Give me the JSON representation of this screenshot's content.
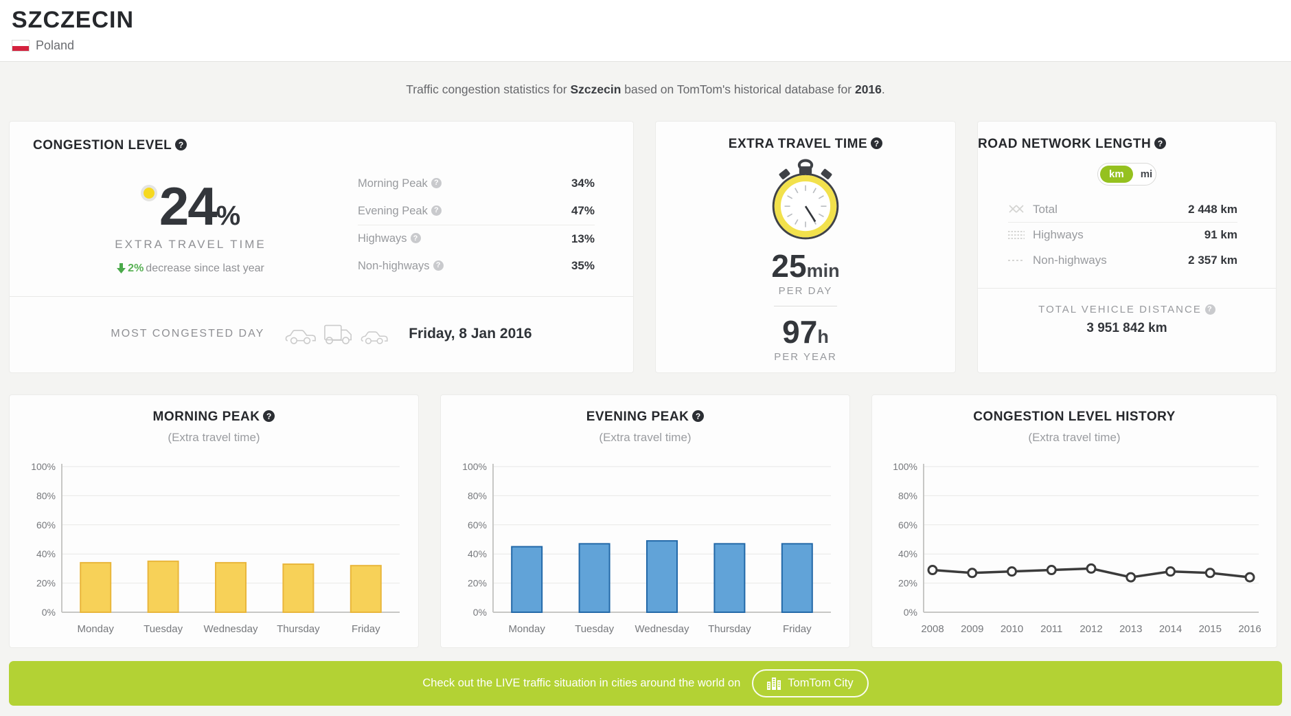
{
  "header": {
    "city": "SZCZECIN",
    "country": "Poland"
  },
  "subtitle": {
    "prefix": "Traffic congestion statistics for ",
    "city": "Szczecin",
    "middle": " based on TomTom's historical database for ",
    "year": "2016",
    "suffix": "."
  },
  "icons": {
    "help_glyph": "?"
  },
  "congestion_card": {
    "title": "CONGESTION LEVEL",
    "main_value": "24",
    "percent_sign": "%",
    "main_label": "EXTRA TRAVEL TIME",
    "trend_value": "2%",
    "trend_text": "decrease since last year",
    "stats": [
      {
        "label": "Morning Peak",
        "value": "34%"
      },
      {
        "label": "Evening Peak",
        "value": "47%"
      },
      {
        "label": "Highways",
        "value": "13%"
      },
      {
        "label": "Non-highways",
        "value": "35%"
      }
    ],
    "most_congested_label": "MOST CONGESTED DAY",
    "most_congested_day": "Friday, 8 Jan 2016"
  },
  "extra_time_card": {
    "title": "EXTRA TRAVEL TIME",
    "per_day_value": "25",
    "per_day_unit": "min",
    "per_day_label": "PER DAY",
    "per_year_value": "97",
    "per_year_unit": "h",
    "per_year_label": "PER YEAR"
  },
  "road_card": {
    "title": "ROAD NETWORK LENGTH",
    "unit_km": "km",
    "unit_mi": "mi",
    "rows": [
      {
        "label": "Total",
        "value": "2 448 km"
      },
      {
        "label": "Highways",
        "value": "91 km"
      },
      {
        "label": "Non-highways",
        "value": "2 357 km"
      }
    ],
    "distance_label": "TOTAL VEHICLE DISTANCE",
    "distance_value": "3 951 842 km"
  },
  "banner": {
    "text": "Check out the LIVE traffic situation in cities around the world on",
    "button": "TomTom City"
  },
  "colors": {
    "accent_green": "#95c11f",
    "banner_green": "#b3d234",
    "trend_green": "#58b154",
    "dot_yellow": "#f6d91f",
    "bar_yellow": "#f7d158",
    "bar_yellow_border": "#e9b63b",
    "bar_blue": "#61a3d8",
    "bar_blue_border": "#2268a8",
    "line_dark": "#3b3b3b"
  },
  "chart_data": [
    {
      "type": "bar",
      "title": "MORNING PEAK",
      "subtitle": "(Extra travel time)",
      "categories": [
        "Monday",
        "Tuesday",
        "Wednesday",
        "Thursday",
        "Friday"
      ],
      "values": [
        34,
        35,
        34,
        33,
        32
      ],
      "ylim": [
        0,
        100
      ],
      "yticks": [
        "0%",
        "20%",
        "40%",
        "60%",
        "80%",
        "100%"
      ],
      "grid": true,
      "bar_fill": "#f7d158",
      "bar_stroke": "#e9b63b"
    },
    {
      "type": "bar",
      "title": "EVENING PEAK",
      "subtitle": "(Extra travel time)",
      "categories": [
        "Monday",
        "Tuesday",
        "Wednesday",
        "Thursday",
        "Friday"
      ],
      "values": [
        45,
        47,
        49,
        47,
        47
      ],
      "ylim": [
        0,
        100
      ],
      "yticks": [
        "0%",
        "20%",
        "40%",
        "60%",
        "80%",
        "100%"
      ],
      "grid": true,
      "bar_fill": "#61a3d8",
      "bar_stroke": "#2268a8"
    },
    {
      "type": "line",
      "title": "CONGESTION LEVEL HISTORY",
      "subtitle": "(Extra travel time)",
      "categories": [
        "2008",
        "2009",
        "2010",
        "2011",
        "2012",
        "2013",
        "2014",
        "2015",
        "2016"
      ],
      "values": [
        29,
        27,
        28,
        29,
        30,
        24,
        28,
        27,
        24
      ],
      "ylim": [
        0,
        100
      ],
      "yticks": [
        "0%",
        "20%",
        "40%",
        "60%",
        "80%",
        "100%"
      ],
      "grid": true,
      "line_color": "#3b3b3b",
      "marker": "open-circle"
    }
  ]
}
